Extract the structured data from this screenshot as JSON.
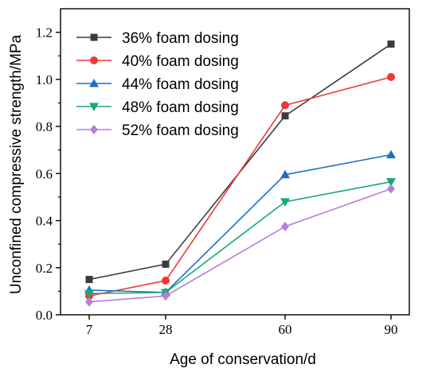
{
  "chart_data": {
    "type": "line",
    "xlabel": "Age of conservation/d",
    "ylabel": "Unconfined compressive strength/MPa",
    "categories": [
      "7",
      "28",
      "60",
      "90"
    ],
    "ylim": [
      0.0,
      1.3
    ],
    "yticks": [
      "0.0",
      "0.2",
      "0.4",
      "0.6",
      "0.8",
      "1.0",
      "1.2"
    ],
    "legend_position": "top-left",
    "grid": false,
    "series": [
      {
        "name": "36% foam dosing",
        "color": "#3c3c3c",
        "marker": "square",
        "values": [
          0.15,
          0.215,
          0.845,
          1.15
        ]
      },
      {
        "name": "40% foam dosing",
        "color": "#ec3a34",
        "marker": "circle",
        "values": [
          0.08,
          0.145,
          0.89,
          1.01
        ]
      },
      {
        "name": "44% foam dosing",
        "color": "#1f6fc2",
        "marker": "triangle-up",
        "values": [
          0.105,
          0.095,
          0.595,
          0.68
        ]
      },
      {
        "name": "48% foam dosing",
        "color": "#18a77c",
        "marker": "triangle-down",
        "values": [
          0.09,
          0.095,
          0.48,
          0.565
        ]
      },
      {
        "name": "52% foam dosing",
        "color": "#b77ed6",
        "marker": "diamond",
        "values": [
          0.055,
          0.08,
          0.375,
          0.535
        ]
      }
    ]
  }
}
